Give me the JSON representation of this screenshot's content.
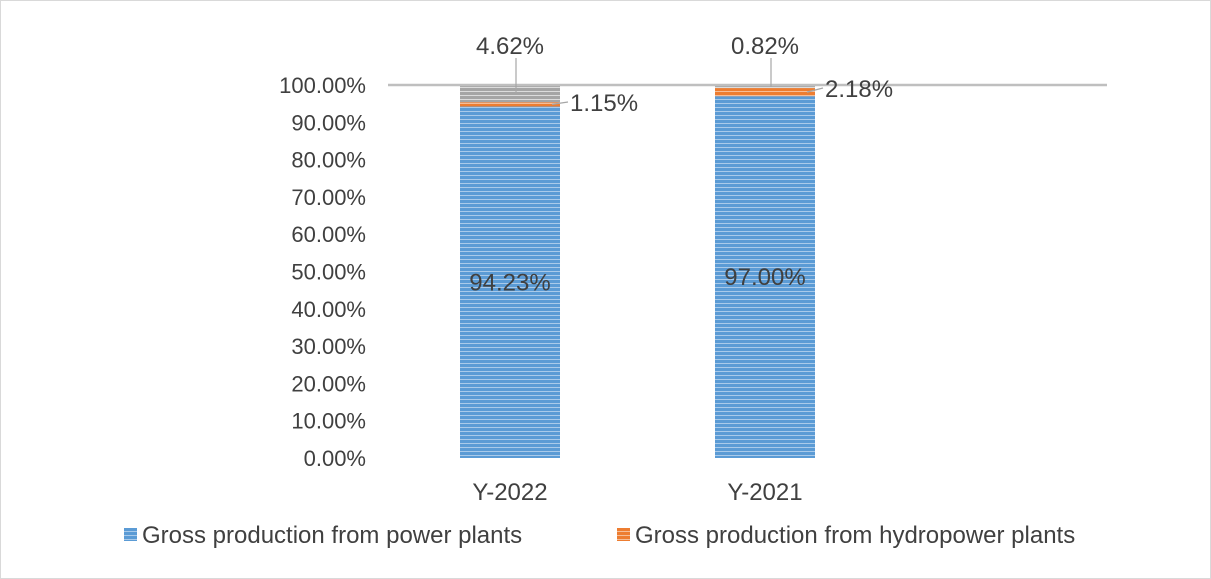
{
  "chart_data": {
    "type": "bar",
    "stacked": true,
    "categories": [
      "Y-2022",
      "Y-2021"
    ],
    "series": [
      {
        "name": "Gross production from power plants",
        "values": [
          94.23,
          97.0
        ],
        "labels": [
          "94.23%",
          "97.00%"
        ]
      },
      {
        "name": "Gross production from hydropower plants",
        "values": [
          1.15,
          2.18
        ],
        "labels": [
          "1.15%",
          "2.18%"
        ]
      },
      {
        "name": "",
        "values": [
          4.62,
          0.82
        ],
        "labels": [
          "4.62%",
          "0.82%"
        ]
      }
    ],
    "yticks": [
      "0.00%",
      "10.00%",
      "20.00%",
      "30.00%",
      "40.00%",
      "50.00%",
      "60.00%",
      "70.00%",
      "80.00%",
      "90.00%",
      "100.00%"
    ],
    "ylim": [
      0,
      100
    ],
    "legend_position": "bottom",
    "grid": false,
    "colors": {
      "power": "#5b9bd5",
      "hydro": "#ed7d31",
      "other": "#a5a5a5",
      "axis": "#bfbfbf",
      "text": "#404040"
    }
  }
}
